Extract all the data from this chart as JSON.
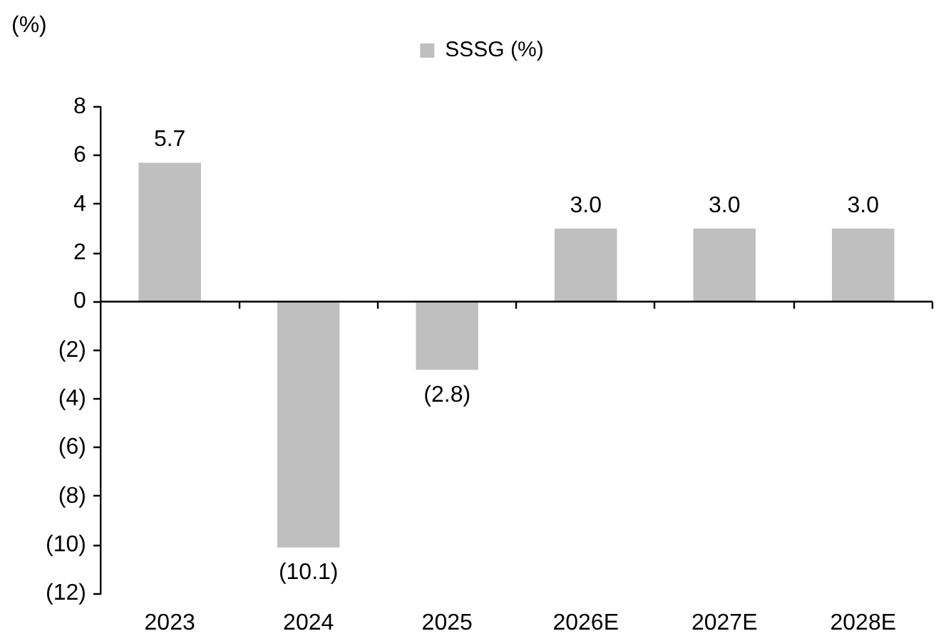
{
  "chart_data": {
    "type": "bar",
    "ylabel": "(%)",
    "categories": [
      "2023",
      "2024",
      "2025",
      "2026E",
      "2027E",
      "2028E"
    ],
    "series": [
      {
        "name": "SSSG (%)",
        "color": "#bfbfbf",
        "values": [
          5.7,
          -10.1,
          -2.8,
          3.0,
          3.0,
          3.0
        ],
        "value_labels": [
          "5.7",
          "(10.1)",
          "(2.8)",
          "3.0",
          "3.0",
          "3.0"
        ]
      }
    ],
    "ylim": [
      -12,
      8
    ],
    "yticks": [
      8,
      6,
      4,
      2,
      0,
      {
        "value": -2,
        "label": "(2)"
      },
      {
        "value": -4,
        "label": "(4)"
      },
      {
        "value": -6,
        "label": "(6)"
      },
      {
        "value": -8,
        "label": "(8)"
      },
      {
        "value": -10,
        "label": "(10)"
      },
      {
        "value": -12,
        "label": "(12)"
      }
    ],
    "legend": "top"
  }
}
